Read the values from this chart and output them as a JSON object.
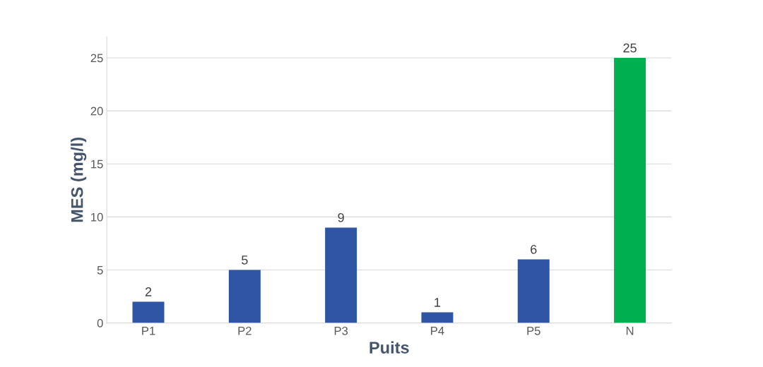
{
  "chart_data": {
    "type": "bar",
    "xlabel": "Puits",
    "ylabel": "MES (mg/l)",
    "categories": [
      "P1",
      "P2",
      "P3",
      "P4",
      "P5",
      "N"
    ],
    "values": [
      2,
      5,
      9,
      1,
      6,
      25
    ],
    "colors": [
      "#2f55a4",
      "#2f55a4",
      "#2f55a4",
      "#2f55a4",
      "#2f55a4",
      "#00b050"
    ],
    "ylim": [
      0,
      27
    ],
    "yticks": [
      0,
      5,
      10,
      15,
      20,
      25
    ],
    "grid": "y",
    "data_labels": true
  }
}
